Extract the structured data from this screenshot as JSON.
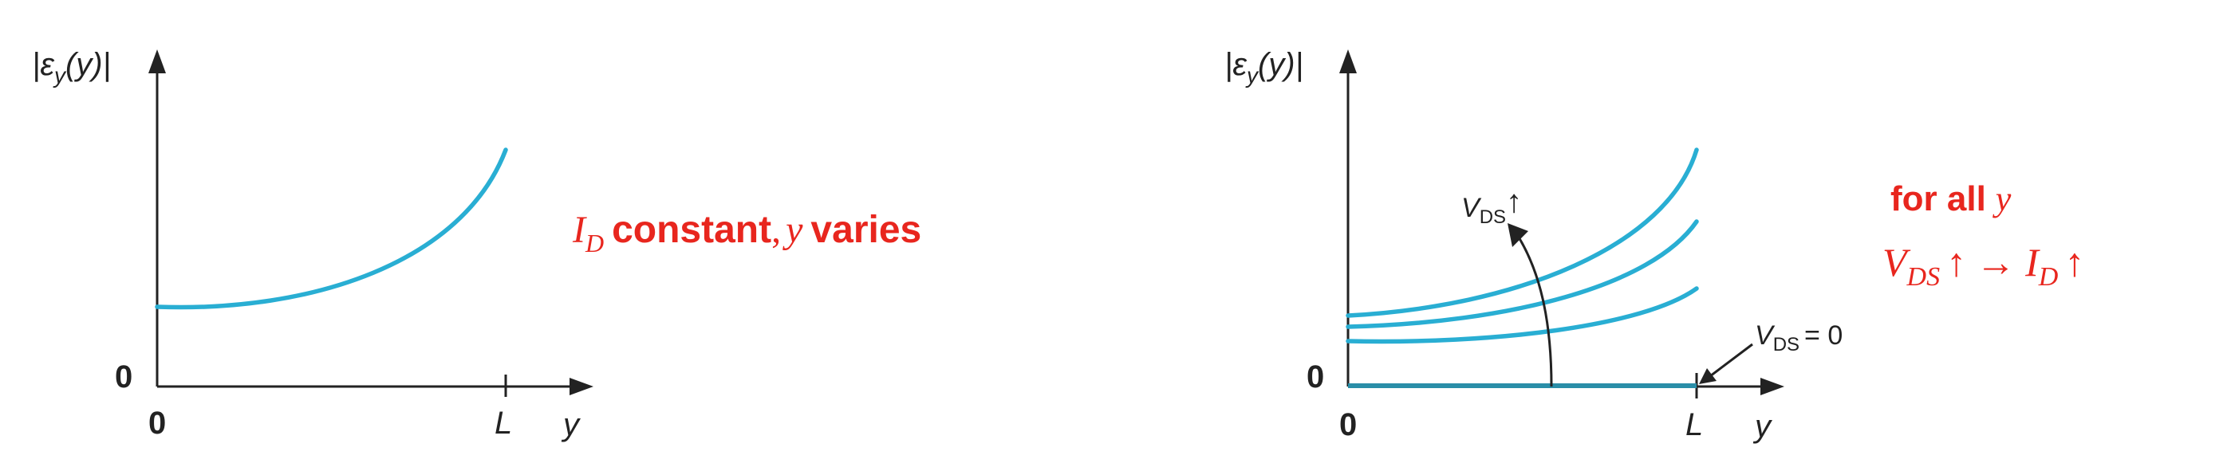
{
  "left_plot": {
    "y_axis_label": {
      "open": "|ε",
      "sub": "y",
      "arg": "(y)|"
    },
    "origin_y": "0",
    "origin_x": "0",
    "tick_L": "L",
    "x_axis_label": "y",
    "annotation": {
      "I": "I",
      "D": "D",
      "constant": "constant",
      "comma": ",",
      "y": "y",
      "varies": "varies"
    }
  },
  "right_plot": {
    "y_axis_label": {
      "open": "|ε",
      "sub": "y",
      "arg": "(y)|"
    },
    "origin_y": "0",
    "origin_x": "0",
    "tick_L": "L",
    "x_axis_label": "y",
    "vds_arrow_label": {
      "V": "V",
      "sub": "DS",
      "arrow": "↑"
    },
    "vds_zero_label": {
      "V": "V",
      "sub": "DS",
      "eq": "= 0"
    },
    "annotation": {
      "line1_prefix": "for all",
      "line1_var": "y",
      "line2": {
        "V": "V",
        "DS": "DS",
        "up1": "↑",
        "to": "→",
        "I": "I",
        "D": "D",
        "up2": "↑"
      }
    }
  },
  "colors": {
    "curve": "#29aed3",
    "baseline": "#2a8ea8",
    "axis": "#222222",
    "annotation": "#e8261e"
  }
}
